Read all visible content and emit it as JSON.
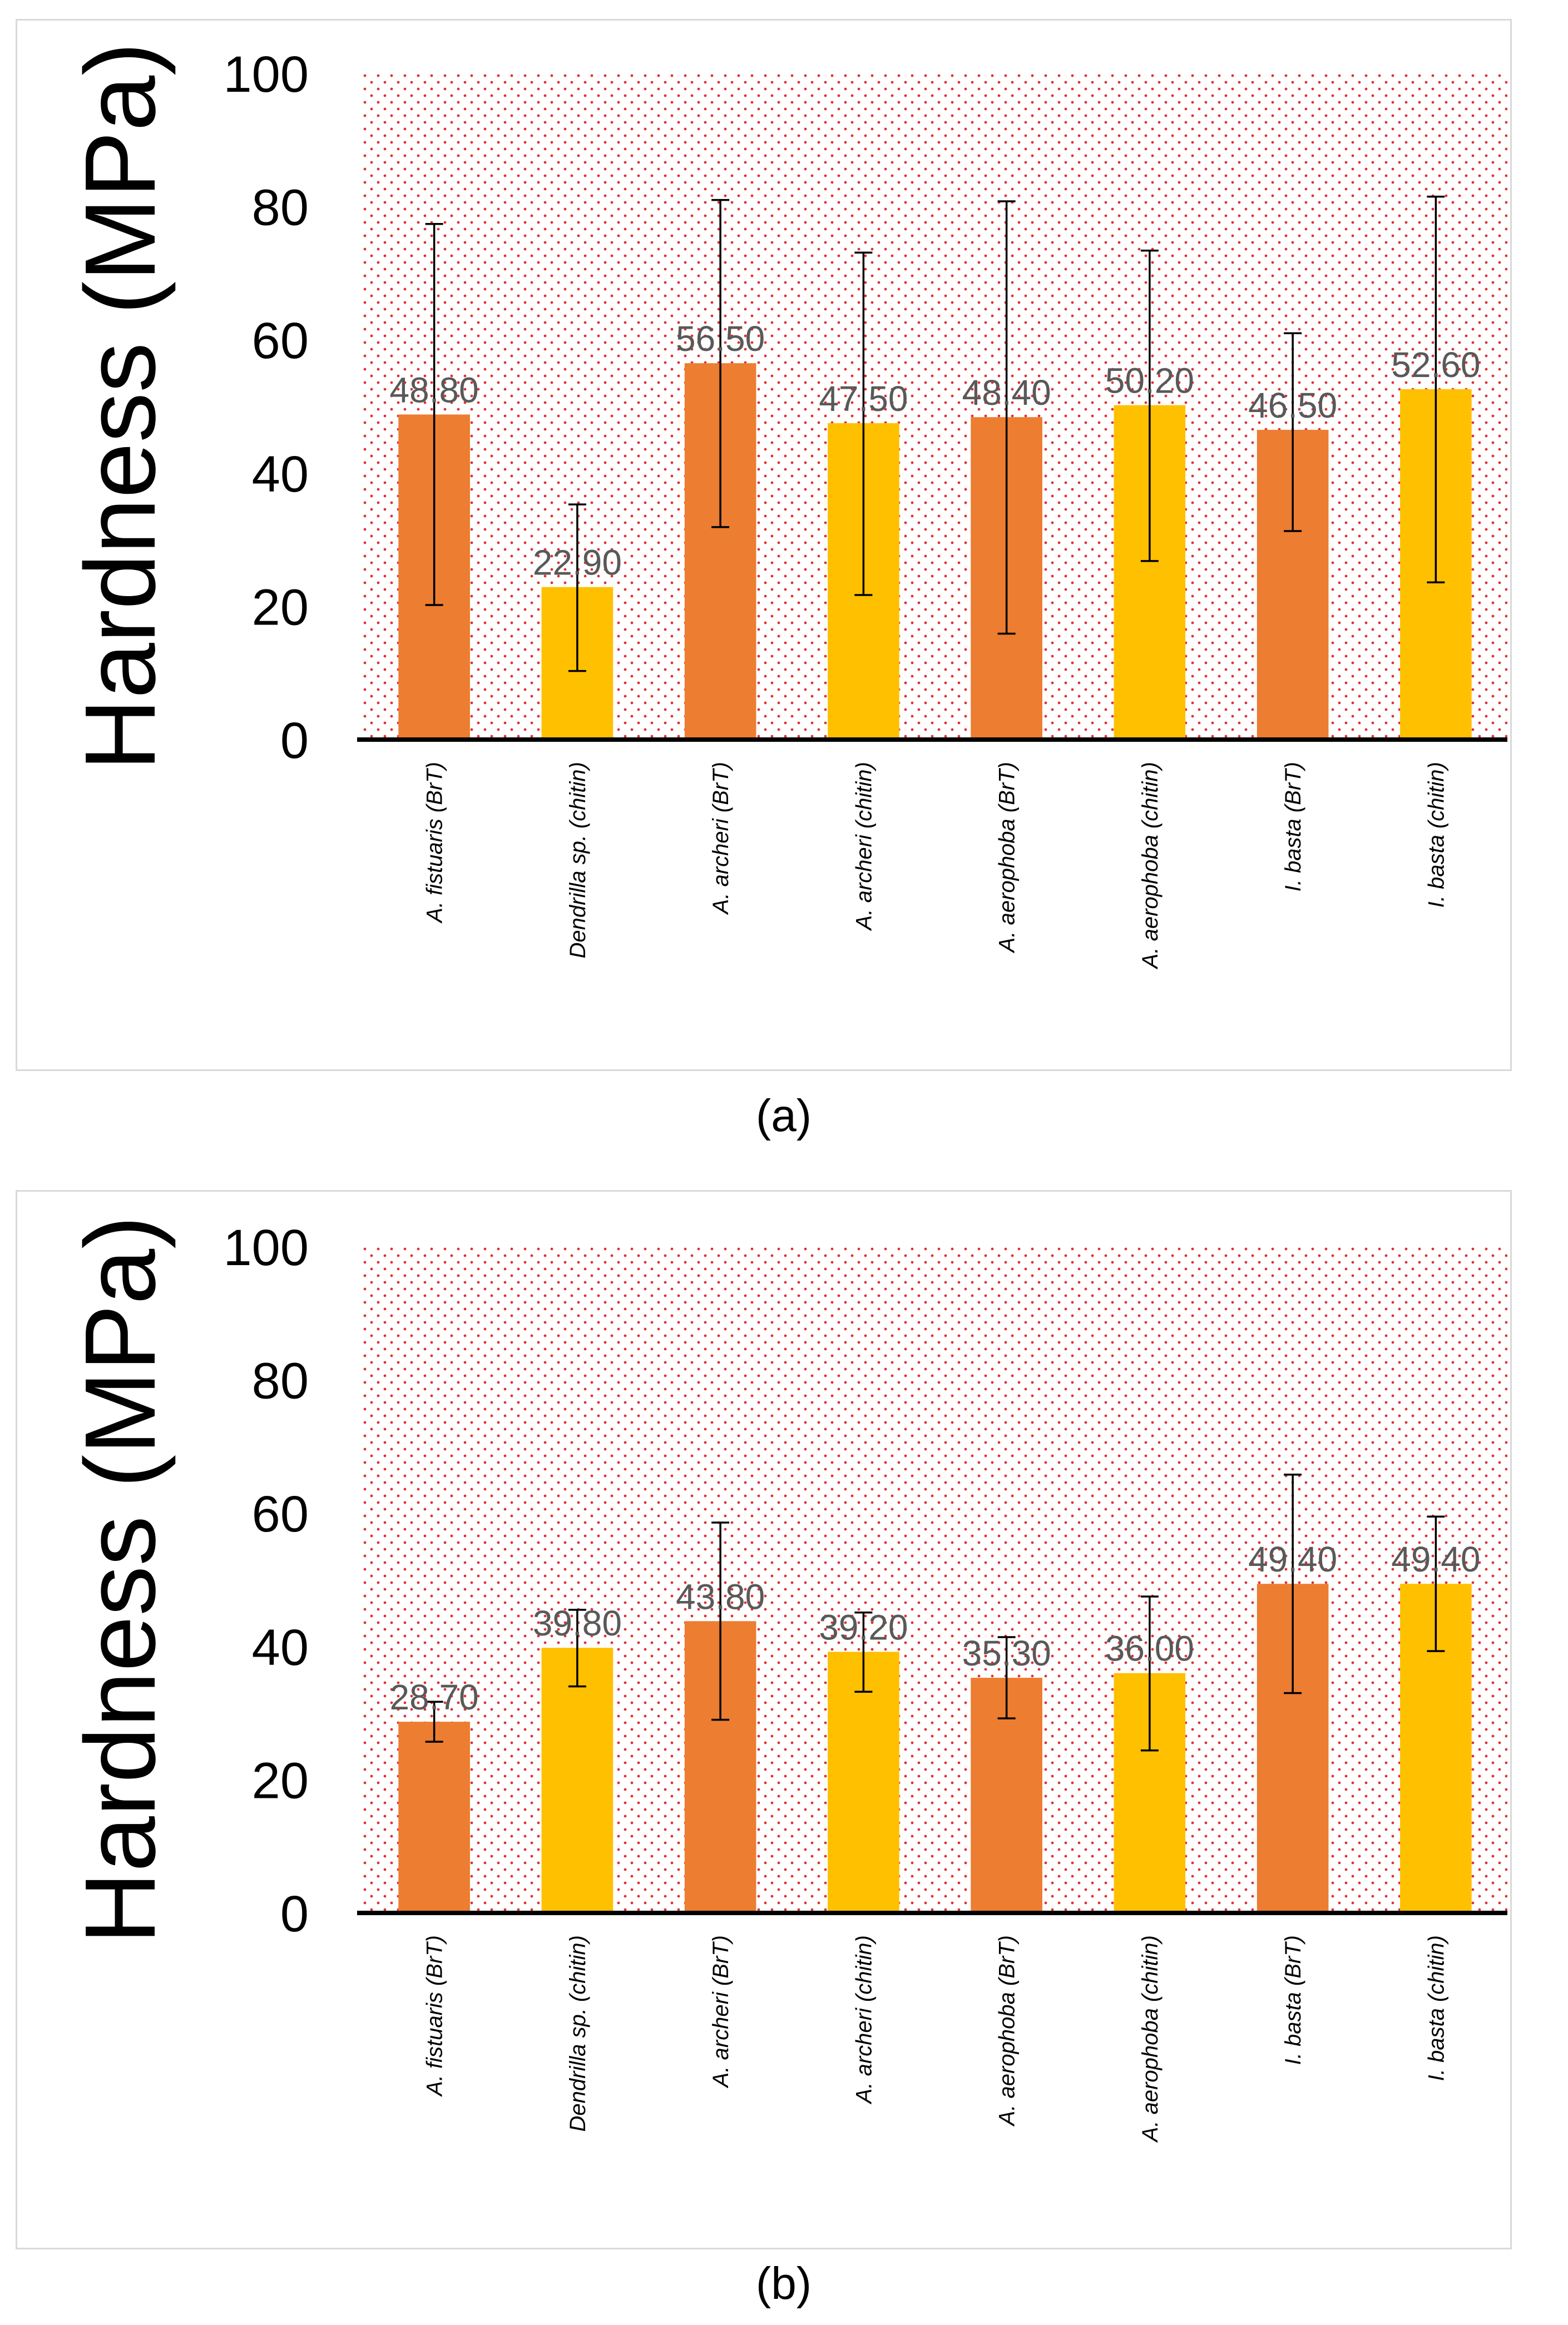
{
  "colors": {
    "brt": "#ED7D31",
    "chitin": "#FFC000",
    "grid_dots": "#E03030",
    "axis": "#000000",
    "error_bar": "#000000",
    "data_label": "#595959"
  },
  "chart_data": [
    {
      "type": "bar",
      "panel": "(a)",
      "caption": "(a)",
      "ylabel": "Hardness (MPa)",
      "xlabel": "",
      "ylim": [
        0,
        100
      ],
      "yticks": [
        "0",
        "20",
        "40",
        "60",
        "80",
        "100"
      ],
      "categories": [
        "A. fistuaris (BrT)",
        "Dendrilla sp. (chitin)",
        "A. archeri (BrT)",
        "A. archeri (chitin)",
        "A. aerophoba (BrT)",
        "A. aerophoba (chitin)",
        "I. basta (BrT)",
        "I. basta (chitin)"
      ],
      "values": [
        48.8,
        22.9,
        56.5,
        47.5,
        48.4,
        50.2,
        46.5,
        52.6
      ],
      "value_labels": [
        "48.80",
        "22.90",
        "56.50",
        "47.50",
        "48.40",
        "50.20",
        "46.50",
        "52.60"
      ],
      "error_low": [
        20.2,
        10.3,
        31.9,
        21.7,
        15.9,
        26.8,
        31.3,
        23.6
      ],
      "error_high": [
        77.4,
        35.3,
        81.0,
        73.1,
        80.8,
        73.4,
        61.0,
        81.5
      ],
      "bar_types": [
        "brt",
        "chitin",
        "brt",
        "chitin",
        "brt",
        "chitin",
        "brt",
        "chitin"
      ]
    },
    {
      "type": "bar",
      "panel": "(b)",
      "caption": "(b)",
      "ylabel": "Hardness (MPa)",
      "xlabel": "",
      "ylim": [
        0,
        100
      ],
      "yticks": [
        "0",
        "20",
        "40",
        "60",
        "80",
        "100"
      ],
      "categories": [
        "A. fistuaris (BrT)",
        "Dendrilla sp. (chitin)",
        "A. archeri (BrT)",
        "A. archeri (chitin)",
        "A. aerophoba (BrT)",
        "A. aerophoba (chitin)",
        "I. basta (BrT)",
        "I. basta (chitin)"
      ],
      "values": [
        28.7,
        39.8,
        43.8,
        39.2,
        35.3,
        36.0,
        49.4,
        49.4
      ],
      "value_labels": [
        "28.70",
        "39.80",
        "43.80",
        "39.20",
        "35.30",
        "36.00",
        "49.40",
        "49.40"
      ],
      "error_low": [
        25.7,
        34.0,
        29.0,
        33.2,
        29.2,
        24.4,
        33.0,
        39.3
      ],
      "error_high": [
        31.7,
        45.5,
        58.6,
        45.1,
        41.4,
        47.5,
        65.8,
        59.5
      ],
      "bar_types": [
        "brt",
        "chitin",
        "brt",
        "chitin",
        "brt",
        "chitin",
        "brt",
        "chitin"
      ]
    }
  ]
}
